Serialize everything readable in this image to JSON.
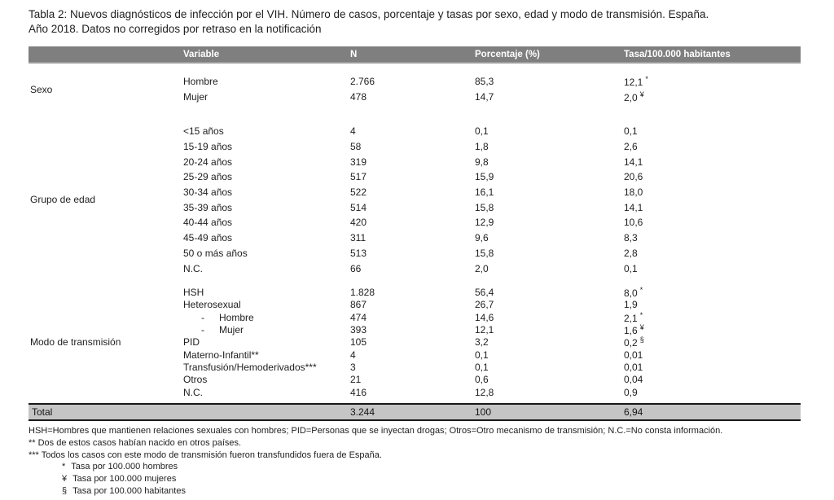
{
  "page": {
    "title_lines": [
      "Tabla 2: Nuevos diagnósticos de infección por el VIH. Número de casos, porcentaje y tasas por sexo, edad y modo de transmisión. España.",
      "Año 2018. Datos no corregidos por retraso en la notificación"
    ]
  },
  "table": {
    "columns": [
      "Variable",
      "N",
      "Porcentaje (%)",
      "Tasa/100.000 habitantes"
    ],
    "header_bg": "#7f7f7f",
    "total_bg": "#c5c5c5",
    "indent_bullet": "-",
    "sections": [
      {
        "label": "Sexo",
        "rows": [
          {
            "variable": "Hombre",
            "n": "2.766",
            "pct": "85,3",
            "rate": "12,1",
            "mark": "*"
          },
          {
            "variable": "Mujer",
            "n": "478",
            "pct": "14,7",
            "rate": "2,0",
            "mark": "¥"
          }
        ]
      },
      {
        "label": "Grupo de edad",
        "rows": [
          {
            "variable": "<15 años",
            "n": "4",
            "pct": "0,1",
            "rate": "0,1",
            "mark": ""
          },
          {
            "variable": "15-19 años",
            "n": "58",
            "pct": "1,8",
            "rate": "2,6",
            "mark": ""
          },
          {
            "variable": "20-24 años",
            "n": "319",
            "pct": "9,8",
            "rate": "14,1",
            "mark": ""
          },
          {
            "variable": "25-29 años",
            "n": "517",
            "pct": "15,9",
            "rate": "20,6",
            "mark": ""
          },
          {
            "variable": "30-34 años",
            "n": "522",
            "pct": "16,1",
            "rate": "18,0",
            "mark": ""
          },
          {
            "variable": "35-39 años",
            "n": "514",
            "pct": "15,8",
            "rate": "14,1",
            "mark": ""
          },
          {
            "variable": "40-44 años",
            "n": "420",
            "pct": "12,9",
            "rate": "10,6",
            "mark": ""
          },
          {
            "variable": "45-49 años",
            "n": "311",
            "pct": "9,6",
            "rate": "8,3",
            "mark": ""
          },
          {
            "variable": "50 o más años",
            "n": "513",
            "pct": "15,8",
            "rate": "2,8",
            "mark": ""
          },
          {
            "variable": "N.C.",
            "n": "66",
            "pct": "2,0",
            "rate": "0,1",
            "mark": ""
          }
        ]
      },
      {
        "label": "Modo de transmisión",
        "rows": [
          {
            "variable": "HSH",
            "n": "1.828",
            "pct": "56,4",
            "rate": "8,0",
            "mark": "*"
          },
          {
            "variable": "Heterosexual",
            "n": "867",
            "pct": "26,7",
            "rate": "1,9",
            "mark": ""
          },
          {
            "variable": "Hombre",
            "indent": true,
            "n": "474",
            "pct": "14,6",
            "rate": "2,1",
            "mark": "*"
          },
          {
            "variable": "Mujer",
            "indent": true,
            "n": "393",
            "pct": "12,1",
            "rate": "1,6",
            "mark": "¥"
          },
          {
            "variable": "PID",
            "n": "105",
            "pct": "3,2",
            "rate": "0,2",
            "mark": "§"
          },
          {
            "variable": "Materno-Infantil**",
            "n": "4",
            "pct": "0,1",
            "rate": "0,01",
            "mark": ""
          },
          {
            "variable": "Transfusión/Hemoderivados***",
            "n": "3",
            "pct": "0,1",
            "rate": "0,01",
            "mark": ""
          },
          {
            "variable": "Otros",
            "n": "21",
            "pct": "0,6",
            "rate": "0,04",
            "mark": ""
          },
          {
            "variable": "N.C.",
            "n": "416",
            "pct": "12,8",
            "rate": "0,9",
            "mark": ""
          }
        ]
      }
    ],
    "total": {
      "label": "Total",
      "n": "3.244",
      "pct": "100",
      "rate": "6,94",
      "mark": ""
    }
  },
  "footnotes": {
    "definitions": "HSH=Hombres que mantienen relaciones sexuales con hombres; PID=Personas que se inyectan drogas; Otros=Otro mecanismo de transmisión; N.C.=No consta información.",
    "notes": [
      "** Dos de estos casos habían nacido en otros países.",
      "*** Todos los casos con este modo de transmisión fueron transfundidos fuera de España."
    ],
    "symbol_notes": [
      {
        "symbol": "*",
        "text": "Tasa por 100.000 hombres"
      },
      {
        "symbol": "¥",
        "text": "Tasa por 100.000 mujeres"
      },
      {
        "symbol": "§",
        "text": "Tasa por 100.000 habitantes"
      }
    ]
  }
}
